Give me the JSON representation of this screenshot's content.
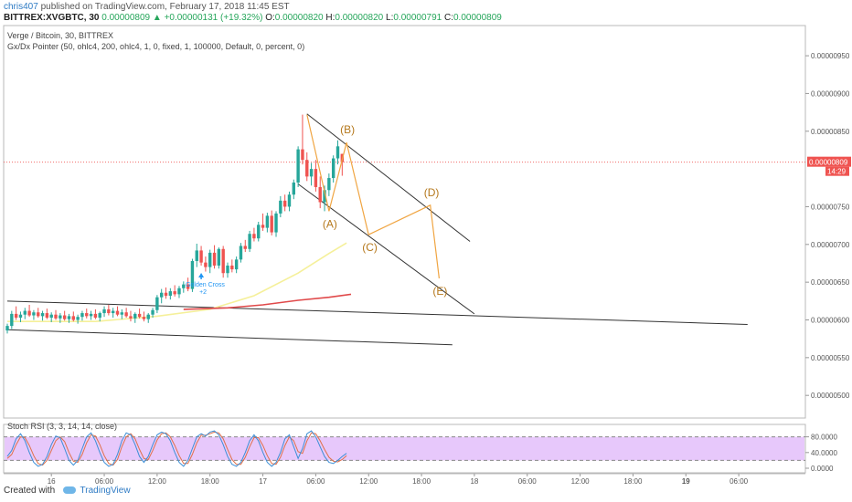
{
  "header": {
    "author": "chris407",
    "published": "published on TradingView.com, February 17, 2018 11:45 EST",
    "symbol": "BITTREX:XVGBTC, 30",
    "close_value": "0.00000809",
    "change_arrow": "▲",
    "change": "+0.00000131 (+19.32%)",
    "o_label": "O:",
    "o_value": "0.00000820",
    "h_label": "H:",
    "h_value": "0.00000820",
    "l_label": "L:",
    "l_value": "0.00000791",
    "c_label": "C:",
    "c_value": "0.00000809"
  },
  "chart_info": {
    "title": "Verge / Bitcoin, 30, BITTREX",
    "indicator": "Gx/Dx Pointer (50, ohlc4, 200, ohlc4, 1, 0, fixed, 1, 100000, Default, 0, percent, 0)",
    "rsi_label": "Stoch RSI (3, 3, 14, 14, close)"
  },
  "footer": {
    "created_with": "Created with",
    "brand": "TradingView"
  },
  "colors": {
    "up": "#26a69a",
    "down": "#ef5350",
    "ma_fast": "#f5f09a",
    "ma_slow": "#e0494a",
    "pattern": "#f0a542",
    "pattern_text": "#b5781c",
    "trend": "#333333",
    "rsi_band": "#e7c8fb",
    "rsi_k": "#3d8fd6",
    "rsi_d": "#e0704a",
    "price_tag": "#ef5350",
    "golden_cross": "#2196f3"
  },
  "chart_data": {
    "type": "candlestick",
    "price_axis": {
      "min": 4.7e-06,
      "max": 9.9e-06,
      "ticks": [
        "0.00000950",
        "0.00000900",
        "0.00000850",
        "0.00000750",
        "0.00000700",
        "0.00000650",
        "0.00000600",
        "0.00000550",
        "0.00000500"
      ],
      "tick_values": [
        9.5e-06,
        9e-06,
        8.5e-06,
        7.5e-06,
        7e-06,
        6.5e-06,
        6e-06,
        5.5e-06,
        5e-06
      ]
    },
    "current_price": {
      "label": "0.00000809",
      "value": 8.09e-06,
      "countdown": "14:29"
    },
    "time_axis": {
      "labels": [
        "16",
        "06:00",
        "12:00",
        "18:00",
        "17",
        "06:00",
        "12:00",
        "18:00",
        "18",
        "06:00",
        "12:00",
        "18:00",
        "19",
        "06:00"
      ],
      "bar_index": [
        10,
        22,
        34,
        46,
        58,
        70,
        82,
        94,
        106,
        118,
        130,
        142,
        154,
        166
      ],
      "bold": [
        false,
        false,
        false,
        false,
        false,
        false,
        false,
        false,
        false,
        false,
        false,
        false,
        true,
        false
      ]
    },
    "candles": [
      [
        5.86e-06,
        5.95e-06,
        5.82e-06,
        5.92e-06
      ],
      [
        5.92e-06,
        6.12e-06,
        5.88e-06,
        6.08e-06
      ],
      [
        6.08e-06,
        6.18e-06,
        6e-06,
        6.03e-06
      ],
      [
        6.03e-06,
        6.11e-06,
        5.97e-06,
        6.07e-06
      ],
      [
        6.07e-06,
        6.16e-06,
        6.01e-06,
        6.12e-06
      ],
      [
        6.12e-06,
        6.2e-06,
        6.04e-06,
        6.06e-06
      ],
      [
        6.06e-06,
        6.13e-06,
        6e-06,
        6.1e-06
      ],
      [
        6.1e-06,
        6.16e-06,
        6.03e-06,
        6.05e-06
      ],
      [
        6.05e-06,
        6.12e-06,
        5.99e-06,
        6.09e-06
      ],
      [
        6.09e-06,
        6.15e-06,
        6.01e-06,
        6.03e-06
      ],
      [
        6.03e-06,
        6.1e-06,
        5.97e-06,
        6.07e-06
      ],
      [
        6.07e-06,
        6.13e-06,
        6e-06,
        6.02e-06
      ],
      [
        6.02e-06,
        6.09e-06,
        5.96e-06,
        6.06e-06
      ],
      [
        6.06e-06,
        6.12e-06,
        5.99e-06,
        6.01e-06
      ],
      [
        6.01e-06,
        6.08e-06,
        5.96e-06,
        6.05e-06
      ],
      [
        6.05e-06,
        6.11e-06,
        5.98e-06,
        6e-06
      ],
      [
        6e-06,
        6.07e-06,
        5.95e-06,
        6.04e-06
      ],
      [
        6.04e-06,
        6.12e-06,
        5.99e-06,
        6.09e-06
      ],
      [
        6.09e-06,
        6.15e-06,
        6.02e-06,
        6.05e-06
      ],
      [
        6.05e-06,
        6.12e-06,
        6e-06,
        6.08e-06
      ],
      [
        6.08e-06,
        6.14e-06,
        6.01e-06,
        6.03e-06
      ],
      [
        6.03e-06,
        6.11e-06,
        5.98e-06,
        6.09e-06
      ],
      [
        6.09e-06,
        6.18e-06,
        6.04e-06,
        6.14e-06
      ],
      [
        6.14e-06,
        6.2e-06,
        6.06e-06,
        6.09e-06
      ],
      [
        6.09e-06,
        6.16e-06,
        6.03e-06,
        6.12e-06
      ],
      [
        6.12e-06,
        6.18e-06,
        6.05e-06,
        6.07e-06
      ],
      [
        6.07e-06,
        6.14e-06,
        6.01e-06,
        6.1e-06
      ],
      [
        6.1e-06,
        6.16e-06,
        6.03e-06,
        6.05e-06
      ],
      [
        6.05e-06,
        6.12e-06,
        5.98e-06,
        6.02e-06
      ],
      [
        6.02e-06,
        6.1e-06,
        5.96e-06,
        6.08e-06
      ],
      [
        6.08e-06,
        6.15e-06,
        6.02e-06,
        6.04e-06
      ],
      [
        6.04e-06,
        6.11e-06,
        5.98e-06,
        6.01e-06
      ],
      [
        6.01e-06,
        6.09e-06,
        5.96e-06,
        6.07e-06
      ],
      [
        6.07e-06,
        6.16e-06,
        6.03e-06,
        6.13e-06
      ],
      [
        6.13e-06,
        6.33e-06,
        6.09e-06,
        6.3e-06
      ],
      [
        6.3e-06,
        6.41e-06,
        6.22e-06,
        6.36e-06
      ],
      [
        6.36e-06,
        6.43e-06,
        6.28e-06,
        6.32e-06
      ],
      [
        6.32e-06,
        6.42e-06,
        6.27e-06,
        6.38e-06
      ],
      [
        6.38e-06,
        6.46e-06,
        6.31e-06,
        6.34e-06
      ],
      [
        6.34e-06,
        6.45e-06,
        6.29e-06,
        6.42e-06
      ],
      [
        6.42e-06,
        6.51e-06,
        6.36e-06,
        6.47e-06
      ],
      [
        6.47e-06,
        6.56e-06,
        6.38e-06,
        6.41e-06
      ],
      [
        6.41e-06,
        6.81e-06,
        6.37e-06,
        6.78e-06
      ],
      [
        6.78e-06,
        7.01e-06,
        6.7e-06,
        6.92e-06
      ],
      [
        6.92e-06,
        6.98e-06,
        6.72e-06,
        6.76e-06
      ],
      [
        6.76e-06,
        6.84e-06,
        6.64e-06,
        6.7e-06
      ],
      [
        6.7e-06,
        6.93e-06,
        6.62e-06,
        6.89e-06
      ],
      [
        6.89e-06,
        6.99e-06,
        6.68e-06,
        6.72e-06
      ],
      [
        6.72e-06,
        6.96e-06,
        6.68e-06,
        6.94e-06
      ],
      [
        6.94e-06,
        6.98e-06,
        6.56e-06,
        6.62e-06
      ],
      [
        6.62e-06,
        6.76e-06,
        6.56e-06,
        6.72e-06
      ],
      [
        6.72e-06,
        6.8e-06,
        6.63e-06,
        6.67e-06
      ],
      [
        6.67e-06,
        6.84e-06,
        6.62e-06,
        6.8e-06
      ],
      [
        6.8e-06,
        7.02e-06,
        6.76e-06,
        6.98e-06
      ],
      [
        6.98e-06,
        7.06e-06,
        6.9e-06,
        6.94e-06
      ],
      [
        6.94e-06,
        7.18e-06,
        6.9e-06,
        7.14e-06
      ],
      [
        7.14e-06,
        7.22e-06,
        7.04e-06,
        7.08e-06
      ],
      [
        7.08e-06,
        7.3e-06,
        7.04e-06,
        7.26e-06
      ],
      [
        7.26e-06,
        7.41e-06,
        7.18e-06,
        7.22e-06
      ],
      [
        7.22e-06,
        7.42e-06,
        7.16e-06,
        7.38e-06
      ],
      [
        7.38e-06,
        7.45e-06,
        7.12e-06,
        7.16e-06
      ],
      [
        7.16e-06,
        7.44e-06,
        7.1e-06,
        7.41e-06
      ],
      [
        7.41e-06,
        7.64e-06,
        7.36e-06,
        7.58e-06
      ],
      [
        7.58e-06,
        7.66e-06,
        7.44e-06,
        7.5e-06
      ],
      [
        7.5e-06,
        7.7e-06,
        7.44e-06,
        7.66e-06
      ],
      [
        7.66e-06,
        7.86e-06,
        7.6e-06,
        7.82e-06
      ],
      [
        7.82e-06,
        8.3e-06,
        7.76e-06,
        8.26e-06
      ],
      [
        8.26e-06,
        8.72e-06,
        8.06e-06,
        8.12e-06
      ],
      [
        8.12e-06,
        8.22e-06,
        7.84e-06,
        7.9e-06
      ],
      [
        7.9e-06,
        8.08e-06,
        7.78e-06,
        8e-06
      ],
      [
        8e-06,
        8.12e-06,
        7.7e-06,
        7.76e-06
      ],
      [
        7.76e-06,
        7.9e-06,
        7.48e-06,
        7.56e-06
      ],
      [
        7.56e-06,
        7.78e-06,
        7.44e-06,
        7.72e-06
      ],
      [
        7.72e-06,
        7.94e-06,
        7.64e-06,
        7.88e-06
      ],
      [
        7.88e-06,
        8.18e-06,
        7.82e-06,
        8.14e-06
      ],
      [
        8.14e-06,
        8.38e-06,
        8.06e-06,
        8.3e-06
      ],
      [
        8.2e-06,
        8.2e-06,
        7.91e-06,
        8.09e-06
      ]
    ],
    "overlays": {
      "ma_fast": [
        [
          0,
          5.98e-06
        ],
        [
          20,
          5.98e-06
        ],
        [
          34,
          6.05e-06
        ],
        [
          46,
          6.14e-06
        ],
        [
          56,
          6.32e-06
        ],
        [
          66,
          6.62e-06
        ],
        [
          73,
          6.88e-06
        ],
        [
          77,
          7.02e-06
        ]
      ],
      "ma_slow": [
        [
          40,
          6.14e-06
        ],
        [
          50,
          6.16e-06
        ],
        [
          58,
          6.2e-06
        ],
        [
          66,
          6.26e-06
        ],
        [
          73,
          6.3e-06
        ],
        [
          78,
          6.34e-06
        ]
      ]
    },
    "pattern": {
      "points": [
        {
          "label": "(A)",
          "bar": 73,
          "price": 7.44e-06
        },
        {
          "label": "(B)",
          "bar": 77,
          "price": 8.35e-06
        },
        {
          "label": "(C)",
          "bar": 82,
          "price": 7.13e-06
        },
        {
          "label": "(D)",
          "bar": 96,
          "price": 7.52e-06
        },
        {
          "label": "(E)",
          "bar": 98,
          "price": 6.55e-06
        }
      ],
      "start": {
        "bar": 68,
        "price": 8.72e-06
      }
    },
    "trendlines": [
      {
        "x1": 0,
        "p1": 6.25e-06,
        "x2": 168,
        "p2": 5.94e-06
      },
      {
        "x1": 0,
        "p1": 5.87e-06,
        "x2": 101,
        "p2": 5.67e-06
      },
      {
        "x1": 68,
        "p1": 8.73e-06,
        "x2": 105,
        "p2": 7.04e-06
      },
      {
        "x1": 66,
        "p1": 7.8e-06,
        "x2": 106,
        "p2": 6.08e-06
      }
    ],
    "annotation": {
      "text": "Golden Cross",
      "sub": "+2",
      "bar": 44
    },
    "stoch_rsi": {
      "ticks": [
        "80.0000",
        "40.0000",
        "0.0000"
      ],
      "tick_values": [
        80,
        40,
        0
      ],
      "upper": 80,
      "lower": 20,
      "k": [
        30,
        45,
        75,
        88,
        70,
        40,
        15,
        5,
        10,
        30,
        60,
        82,
        78,
        50,
        20,
        8,
        20,
        50,
        80,
        90,
        70,
        40,
        15,
        5,
        10,
        35,
        70,
        90,
        85,
        60,
        30,
        15,
        30,
        60,
        85,
        92,
        88,
        70,
        40,
        15,
        5,
        20,
        50,
        80,
        88,
        82,
        92,
        95,
        85,
        60,
        30,
        10,
        5,
        15,
        40,
        70,
        85,
        70,
        40,
        15,
        5,
        15,
        40,
        75,
        85,
        55,
        25,
        50,
        88,
        95,
        80,
        55,
        30,
        15,
        12,
        20,
        30,
        38
      ],
      "d": [
        25,
        35,
        60,
        80,
        78,
        58,
        32,
        12,
        8,
        20,
        45,
        70,
        80,
        68,
        40,
        18,
        15,
        35,
        65,
        85,
        82,
        60,
        32,
        12,
        8,
        22,
        55,
        80,
        88,
        75,
        48,
        25,
        22,
        45,
        72,
        88,
        90,
        80,
        58,
        32,
        12,
        12,
        35,
        65,
        84,
        84,
        88,
        92,
        90,
        75,
        48,
        22,
        10,
        10,
        28,
        55,
        78,
        78,
        58,
        32,
        12,
        10,
        28,
        58,
        80,
        70,
        42,
        38,
        70,
        90,
        88,
        70,
        48,
        28,
        18,
        16,
        22,
        32
      ]
    }
  }
}
